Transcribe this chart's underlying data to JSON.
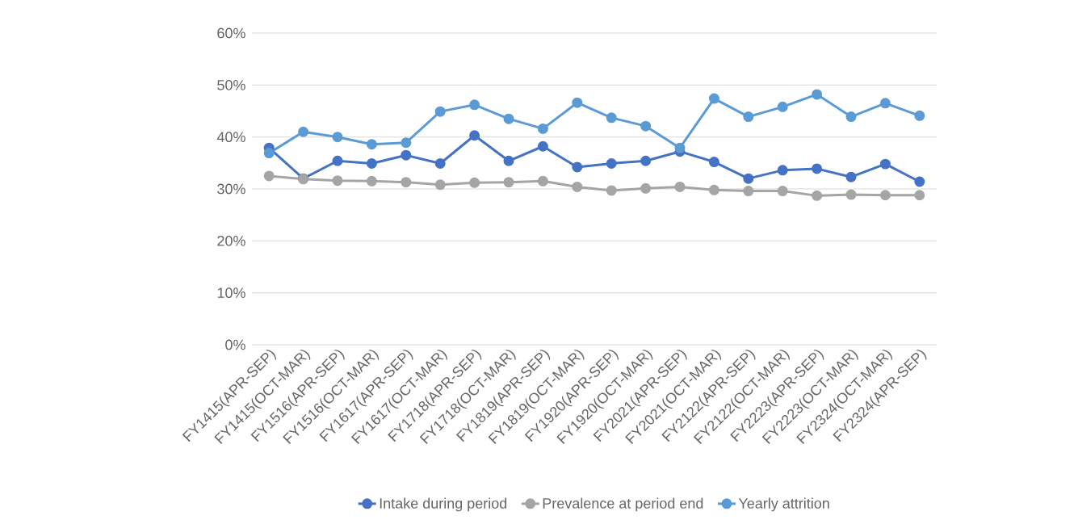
{
  "chart_data": {
    "type": "line",
    "categories": [
      "FY1415(APR-SEP)",
      "FY1415(OCT-MAR)",
      "FY1516(APR-SEP)",
      "FY1516(OCT-MAR)",
      "FY1617(APR-SEP)",
      "FY1617(OCT-MAR)",
      "FY1718(APR-SEP)",
      "FY1718(OCT-MAR)",
      "FY1819(APR-SEP)",
      "FY1819(OCT-MAR)",
      "FY1920(APR-SEP)",
      "FY1920(OCT-MAR)",
      "FY2021(APR-SEP)",
      "FY2021(OCT-MAR)",
      "FY2122(APR-SEP)",
      "FY2122(OCT-MAR)",
      "FY2223(APR-SEP)",
      "FY2223(OCT-MAR)",
      "FY2324(OCT-MAR)",
      "FY2324(APR-SEP)"
    ],
    "series": [
      {
        "name": "Intake during period",
        "color": "#4472c4",
        "values": [
          37.9,
          32.0,
          35.4,
          34.9,
          36.5,
          34.9,
          40.3,
          35.4,
          38.2,
          34.2,
          34.9,
          35.4,
          37.2,
          35.2,
          32.0,
          33.6,
          33.9,
          32.3,
          34.8,
          31.4
        ]
      },
      {
        "name": "Prevalence at period end",
        "color": "#a5a5a5",
        "values": [
          32.5,
          31.9,
          31.6,
          31.5,
          31.3,
          30.8,
          31.2,
          31.3,
          31.5,
          30.4,
          29.7,
          30.1,
          30.4,
          29.8,
          29.6,
          29.6,
          28.7,
          28.9,
          28.8,
          28.8
        ]
      },
      {
        "name": "Yearly attrition",
        "color": "#5b9bd5",
        "values": [
          36.9,
          41.0,
          40.0,
          38.6,
          38.9,
          44.9,
          46.2,
          43.5,
          41.6,
          46.6,
          43.7,
          42.1,
          37.9,
          47.4,
          43.9,
          45.8,
          48.2,
          43.9,
          46.5,
          44.1
        ]
      }
    ],
    "ylim": [
      0,
      60
    ],
    "yticks": [
      {
        "value": 0,
        "label": "0%"
      },
      {
        "value": 10,
        "label": "10%"
      },
      {
        "value": 20,
        "label": "20%"
      },
      {
        "value": 30,
        "label": "30%"
      },
      {
        "value": 40,
        "label": "40%"
      },
      {
        "value": 50,
        "label": "50%"
      },
      {
        "value": 60,
        "label": "60%"
      }
    ],
    "grid": "y",
    "legend": "bottom",
    "marker": "circle",
    "line_style": "solid"
  }
}
